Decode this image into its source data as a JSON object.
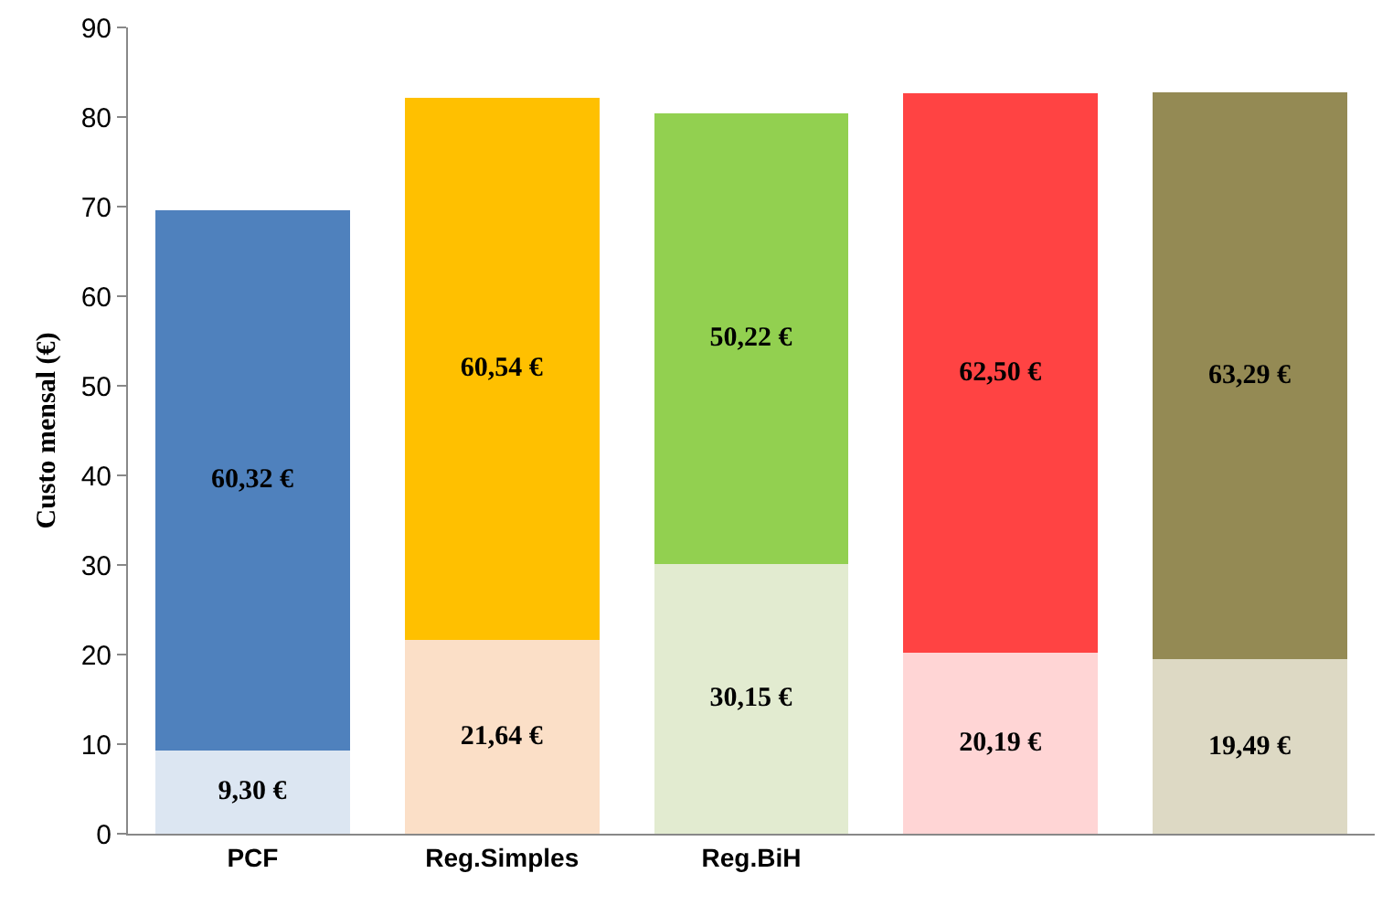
{
  "chart_data": {
    "type": "bar",
    "stacked": true,
    "ylabel": "Custo mensal (€)",
    "categories": [
      "PCF",
      "Reg.Simples",
      "Reg.BiH",
      null,
      null
    ],
    "series": [
      {
        "colors": [
          "#dce6f2",
          "#fbdfc7",
          "#e2ebd0",
          "#ffd5d5",
          "#ddd9c4"
        ],
        "values": [
          9.3,
          21.64,
          30.15,
          20.19,
          19.49
        ],
        "value_labels": [
          "9,30 €",
          "21,64 €",
          "30,15 €",
          "20,19 €",
          "19,49 €"
        ]
      },
      {
        "colors": [
          "#4f81bd",
          "#ffc000",
          "#92d050",
          "#ff4343",
          "#948a54"
        ],
        "values": [
          60.32,
          60.54,
          50.22,
          62.5,
          63.29
        ],
        "value_labels": [
          "60,32 €",
          "60,54 €",
          "50,22 €",
          "62,50 €",
          "63,29 €"
        ]
      }
    ],
    "ylim": [
      0,
      90
    ],
    "yticks": [
      0,
      10,
      20,
      30,
      40,
      50,
      60,
      70,
      80,
      90
    ],
    "grid": false
  }
}
